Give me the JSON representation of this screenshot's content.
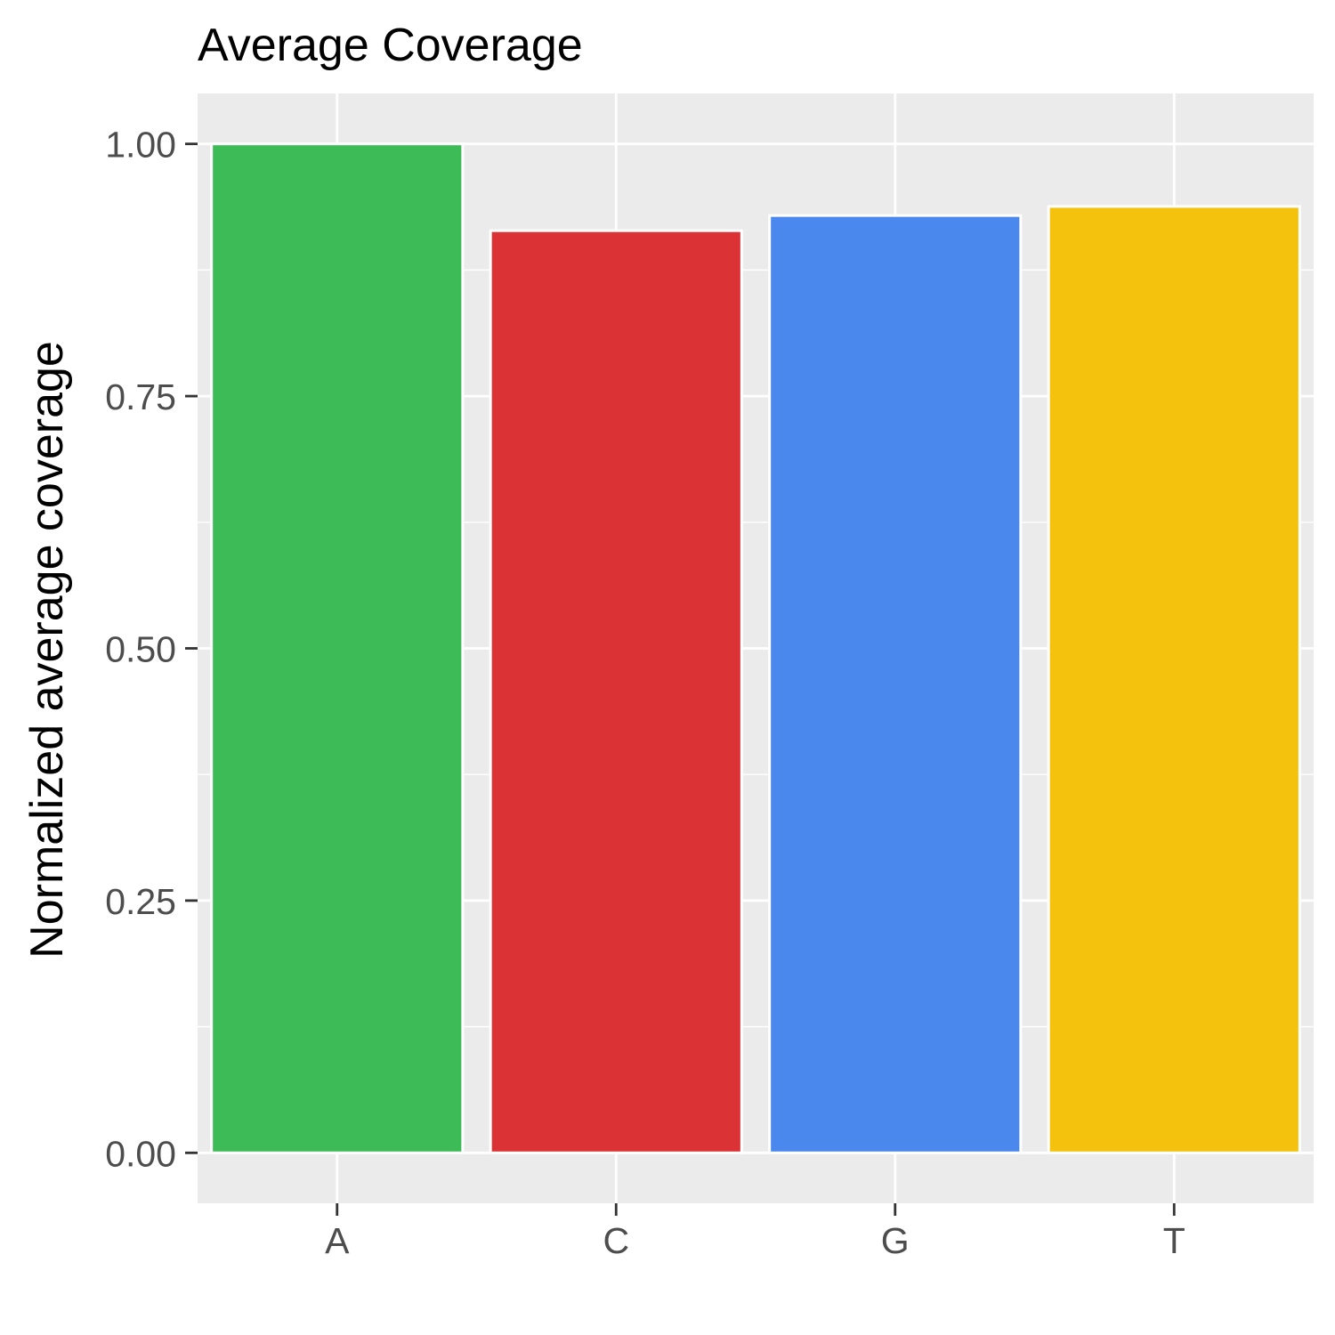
{
  "chart_data": {
    "type": "bar",
    "title": "Average Coverage",
    "xlabel": "",
    "ylabel": "Normalized average coverage",
    "categories": [
      "A",
      "C",
      "G",
      "T"
    ],
    "values": [
      1.0,
      0.914,
      0.929,
      0.938
    ],
    "colors": [
      "#3dbb57",
      "#db3236",
      "#4a88ed",
      "#f4c20d"
    ],
    "ylim": [
      -0.05,
      1.05
    ],
    "yticks": [
      0.0,
      0.25,
      0.5,
      0.75,
      1.0
    ],
    "ytick_labels": [
      "0.00",
      "0.25",
      "0.50",
      "0.75",
      "1.00"
    ],
    "grid": true,
    "legend": "none",
    "panel_background": "#ebebeb",
    "bar_outline": "#ffffff"
  }
}
